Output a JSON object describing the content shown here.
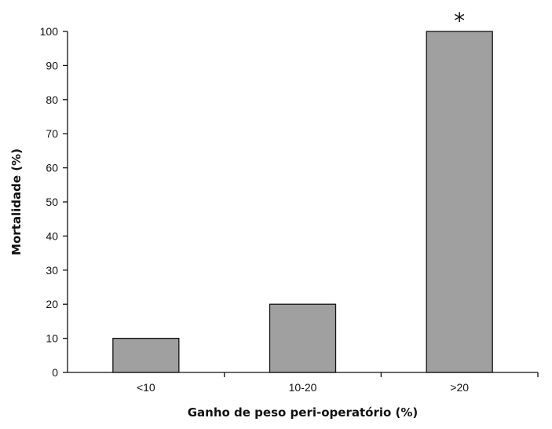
{
  "chart_data": {
    "type": "bar",
    "categories": [
      "<10",
      "10-20",
      ">20"
    ],
    "values": [
      10,
      20,
      100
    ],
    "xlabel": "Ganho de peso peri-operatório (%)",
    "ylabel": "Mortalidade (%)",
    "ylim": [
      0,
      100
    ],
    "yticks": [
      0,
      10,
      20,
      30,
      40,
      50,
      60,
      70,
      80,
      90,
      100
    ],
    "annotations": [
      {
        "category": ">20",
        "text": "*"
      }
    ],
    "grid": false,
    "bar_color": "#a0a0a0",
    "bar_outline_color": "#111111"
  }
}
